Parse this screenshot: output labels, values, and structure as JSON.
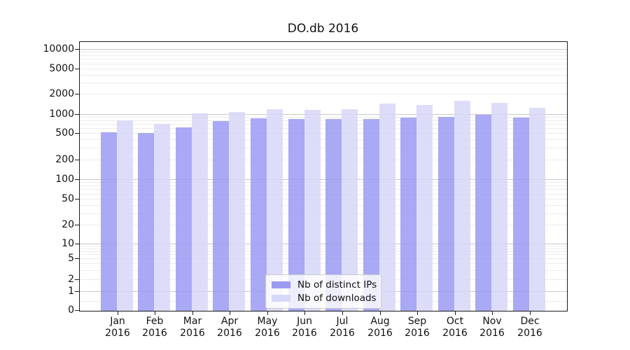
{
  "chart_data": {
    "type": "bar",
    "title": "DO.db 2016",
    "categories": [
      "Jan",
      "Feb",
      "Mar",
      "Apr",
      "May",
      "Jun",
      "Jul",
      "Aug",
      "Sep",
      "Oct",
      "Nov",
      "Dec"
    ],
    "category_year": "2016",
    "series": [
      {
        "name": "Nb of distinct IPs",
        "color": "#9a9af3",
        "values": [
          520,
          505,
          620,
          770,
          860,
          840,
          840,
          830,
          885,
          905,
          975,
          885
        ]
      },
      {
        "name": "Nb of downloads",
        "color": "#d7d7f8",
        "values": [
          790,
          700,
          1025,
          1080,
          1190,
          1160,
          1190,
          1450,
          1380,
          1580,
          1480,
          1250
        ]
      }
    ],
    "y_axis": {
      "scale": "symlog",
      "tick_values": [
        0,
        1,
        2,
        5,
        10,
        20,
        50,
        100,
        200,
        500,
        1000,
        2000,
        5000,
        10000
      ],
      "tick_labels": [
        "0",
        "1",
        "2",
        "5",
        "10",
        "20",
        "50",
        "100",
        "200",
        "500",
        "1000",
        "2000",
        "5000",
        "10000"
      ],
      "major_tick_values": [
        1,
        10,
        100,
        1000,
        10000
      ]
    },
    "legend": {
      "position": "lower center"
    },
    "grid": true
  },
  "colors": {
    "minor_grid": "#ececec",
    "major_grid": "#c9c9c9",
    "spine": "#1c1c1c",
    "legend_border": "#cccccc",
    "text": "#111111"
  }
}
